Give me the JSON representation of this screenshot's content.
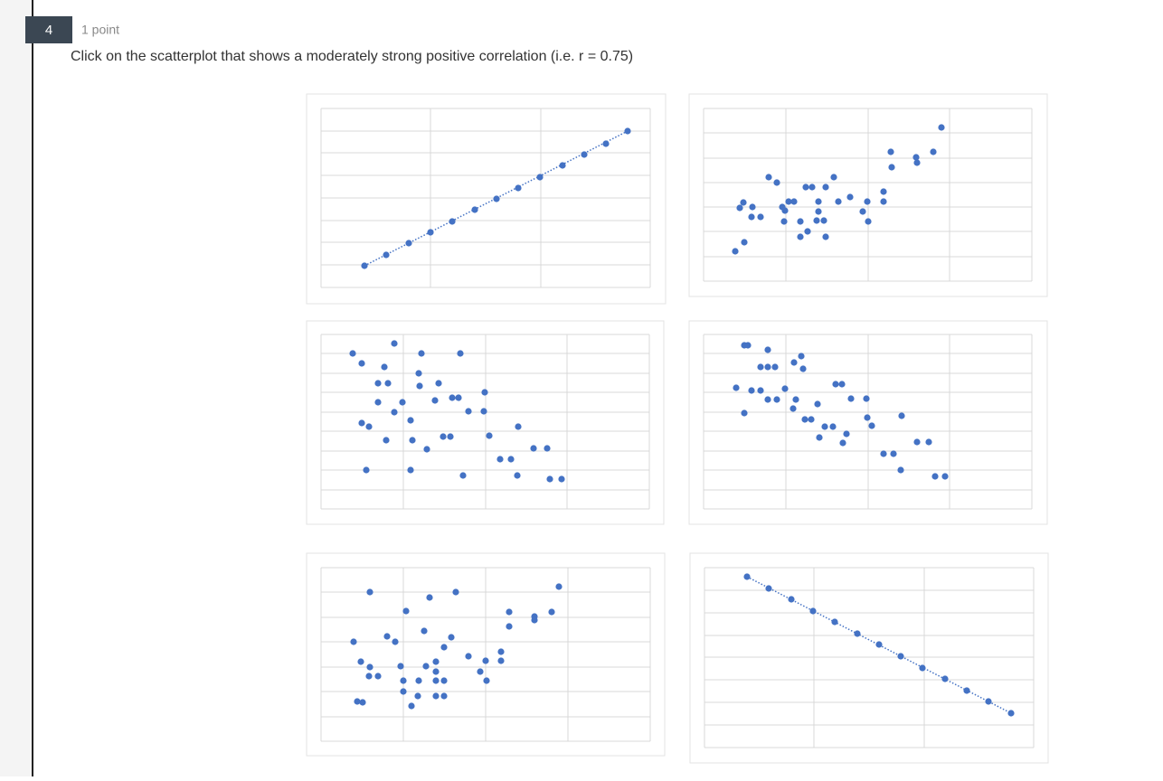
{
  "question": {
    "number": "4",
    "points": "1 point",
    "text": "Click on the scatterplot that shows a moderately strong positive correlation (i.e. r = 0.75)"
  },
  "options": [
    {
      "type": "scatter",
      "color": "#4472c4",
      "trendline": true,
      "grid": true,
      "xlim": [
        0,
        36.4
      ],
      "ylim": [
        0,
        19.8
      ],
      "xticks": [
        0,
        12.1,
        24.3,
        36.4
      ],
      "yticks": [
        0,
        2.5,
        5.0,
        7.4,
        9.9,
        12.4,
        14.9,
        17.3,
        19.8
      ],
      "x": [
        4.8,
        7.2,
        9.7,
        12.1,
        14.5,
        17.0,
        19.4,
        21.8,
        24.2,
        26.7,
        29.1,
        31.5,
        33.9
      ],
      "y": [
        2.4,
        3.6,
        4.9,
        6.1,
        7.3,
        8.6,
        9.8,
        11.0,
        12.2,
        13.5,
        14.7,
        15.9,
        17.3
      ]
    },
    {
      "type": "scatter",
      "color": "#4472c4",
      "trendline": false,
      "grid": true,
      "xlim": [
        0,
        36.3
      ],
      "ylim": [
        0,
        19.1
      ],
      "xticks": [
        0,
        9.1,
        18.2,
        27.2,
        36.3
      ],
      "yticks": [
        0,
        2.7,
        5.5,
        8.2,
        10.9,
        13.6,
        16.4,
        19.1
      ],
      "x": [
        3.5,
        4.5,
        4.0,
        4.4,
        5.4,
        5.3,
        6.3,
        7.2,
        8.1,
        8.7,
        9.0,
        9.4,
        10.0,
        8.9,
        10.7,
        10.7,
        11.5,
        11.3,
        12.0,
        12.7,
        12.7,
        12.5,
        13.3,
        13.5,
        13.5,
        14.4,
        14.9,
        16.2,
        17.6,
        18.1,
        18.2,
        19.9,
        19.9,
        20.7,
        20.8,
        23.5,
        23.6,
        25.4,
        26.3
      ],
      "y": [
        3.3,
        4.3,
        8.1,
        8.7,
        8.2,
        7.1,
        7.1,
        11.5,
        10.9,
        8.2,
        7.8,
        8.8,
        8.8,
        6.6,
        6.6,
        4.9,
        5.5,
        10.4,
        10.4,
        8.8,
        7.7,
        6.7,
        6.7,
        10.4,
        4.9,
        11.5,
        8.8,
        9.3,
        7.7,
        8.8,
        6.6,
        9.9,
        8.8,
        14.3,
        12.6,
        13.7,
        13.1,
        14.3,
        17.0
      ]
    },
    {
      "type": "scatter",
      "color": "#4472c4",
      "trendline": false,
      "grid": true,
      "xlim": [
        0,
        36.3
      ],
      "ylim": [
        0,
        19.3
      ],
      "xticks": [
        0,
        9.1,
        18.2,
        27.2,
        36.3
      ],
      "yticks": [
        0,
        2.1,
        4.3,
        6.4,
        8.6,
        10.7,
        12.9,
        15.0,
        17.2,
        19.3
      ],
      "x": [
        3.5,
        4.5,
        8.1,
        11.1,
        15.4,
        7.0,
        10.8,
        6.3,
        7.4,
        10.9,
        13.0,
        6.3,
        9.0,
        8.1,
        12.6,
        14.5,
        15.2,
        18.1,
        16.3,
        18.0,
        9.9,
        4.5,
        5.3,
        21.8,
        7.2,
        10.1,
        11.7,
        13.5,
        14.3,
        18.6,
        19.8,
        21.0,
        23.5,
        25.0,
        5.0,
        9.9,
        15.7,
        21.7,
        25.3,
        26.6
      ],
      "y": [
        17.2,
        16.1,
        18.3,
        17.2,
        17.2,
        15.7,
        15.0,
        13.9,
        13.9,
        13.6,
        13.9,
        11.8,
        11.8,
        10.7,
        12.0,
        12.3,
        12.3,
        12.9,
        10.8,
        10.8,
        9.8,
        9.5,
        9.1,
        9.1,
        7.6,
        7.6,
        6.6,
        8.0,
        8.0,
        8.1,
        5.5,
        5.5,
        6.7,
        6.7,
        4.3,
        4.3,
        3.7,
        3.7,
        3.3,
        3.3
      ]
    },
    {
      "type": "scatter",
      "color": "#4472c4",
      "trendline": false,
      "grid": true,
      "xlim": [
        0,
        36.3
      ],
      "ylim": [
        0,
        19.3
      ],
      "xticks": [
        0,
        9.1,
        18.2,
        27.2,
        36.3
      ],
      "yticks": [
        0,
        2.1,
        4.3,
        6.4,
        8.6,
        10.7,
        12.9,
        15.0,
        17.2,
        19.3
      ],
      "x": [
        4.5,
        4.9,
        7.1,
        10.8,
        10.0,
        11.0,
        6.3,
        7.1,
        7.9,
        3.6,
        5.3,
        6.3,
        9.0,
        7.1,
        8.1,
        10.2,
        14.6,
        15.3,
        12.6,
        9.9,
        16.3,
        18.0,
        4.5,
        11.2,
        11.9,
        13.4,
        14.3,
        15.8,
        12.8,
        15.4,
        18.1,
        18.6,
        21.9,
        23.6,
        24.9,
        19.9,
        21.0,
        21.8,
        25.6,
        26.7
      ],
      "y": [
        18.1,
        18.1,
        17.6,
        16.9,
        16.2,
        15.5,
        15.7,
        15.7,
        15.7,
        13.4,
        13.1,
        13.1,
        13.3,
        12.1,
        12.1,
        12.1,
        13.8,
        13.8,
        11.6,
        11.1,
        12.2,
        12.2,
        10.6,
        9.9,
        9.9,
        9.1,
        9.1,
        8.3,
        7.9,
        7.3,
        10.1,
        9.2,
        10.3,
        7.4,
        7.4,
        6.1,
        6.1,
        4.3,
        3.6,
        3.6
      ]
    },
    {
      "type": "scatter",
      "color": "#4472c4",
      "trendline": false,
      "grid": true,
      "xlim": [
        0,
        36.4
      ],
      "ylim": [
        0,
        19.2
      ],
      "xticks": [
        0,
        9.1,
        18.2,
        27.3,
        36.4
      ],
      "yticks": [
        0,
        2.7,
        5.5,
        8.2,
        11.0,
        13.7,
        16.5,
        19.2
      ],
      "x": [
        5.4,
        12.0,
        14.9,
        26.3,
        9.4,
        20.8,
        23.6,
        23.6,
        25.5,
        20.8,
        3.6,
        7.3,
        8.2,
        11.4,
        14.4,
        13.6,
        16.3,
        19.9,
        19.9,
        18.2,
        4.4,
        5.4,
        5.3,
        6.3,
        8.8,
        11.6,
        12.7,
        12.7,
        17.6,
        18.3,
        9.1,
        10.8,
        12.7,
        13.6,
        9.1,
        10.7,
        12.7,
        13.6,
        4.0,
        4.6,
        10.0
      ],
      "y": [
        16.5,
        15.9,
        16.5,
        17.1,
        14.4,
        14.3,
        13.8,
        13.4,
        14.3,
        12.7,
        11.0,
        11.6,
        11.0,
        12.2,
        11.5,
        10.4,
        9.4,
        9.9,
        8.9,
        8.9,
        8.8,
        8.2,
        7.2,
        7.2,
        8.3,
        8.3,
        8.8,
        7.7,
        7.7,
        6.7,
        6.7,
        6.7,
        6.7,
        6.7,
        5.5,
        5.0,
        5.0,
        5.0,
        4.4,
        4.3,
        3.9
      ]
    },
    {
      "type": "scatter",
      "color": "#4472c4",
      "trendline": true,
      "grid": true,
      "xlim": [
        0,
        36.4
      ],
      "ylim": [
        0,
        19.9
      ],
      "xticks": [
        0,
        12.1,
        24.3,
        36.4
      ],
      "yticks": [
        0,
        2.5,
        5.0,
        7.5,
        10.0,
        12.4,
        14.9,
        17.4,
        19.9
      ],
      "x": [
        4.7,
        7.1,
        9.6,
        12.0,
        14.4,
        16.9,
        19.3,
        21.7,
        24.1,
        26.6,
        29.0,
        31.4,
        33.9
      ],
      "y": [
        18.9,
        17.6,
        16.4,
        15.1,
        13.9,
        12.6,
        11.4,
        10.1,
        8.8,
        7.6,
        6.3,
        5.1,
        3.8
      ]
    }
  ]
}
